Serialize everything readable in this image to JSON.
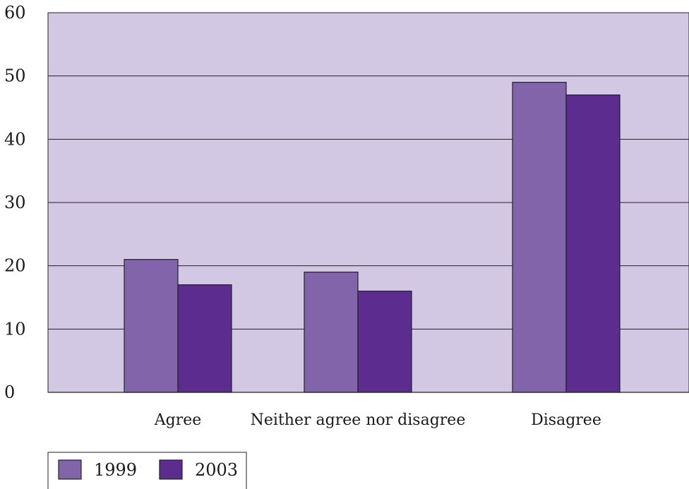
{
  "chart_data": {
    "type": "bar",
    "categories": [
      "Agree",
      "Neither agree nor disagree",
      "Disagree"
    ],
    "series": [
      {
        "name": "1999",
        "values": [
          21,
          19,
          49
        ],
        "color": "#8264aa"
      },
      {
        "name": "2003",
        "values": [
          17,
          16,
          47
        ],
        "color": "#5c2d8e"
      }
    ],
    "yticks": [
      "0",
      "10",
      "20",
      "30",
      "40",
      "50",
      "60"
    ],
    "ylim": [
      0,
      60
    ],
    "grid": true,
    "legend_position": "bottom-left",
    "plot_background": "#d3c8e4"
  }
}
